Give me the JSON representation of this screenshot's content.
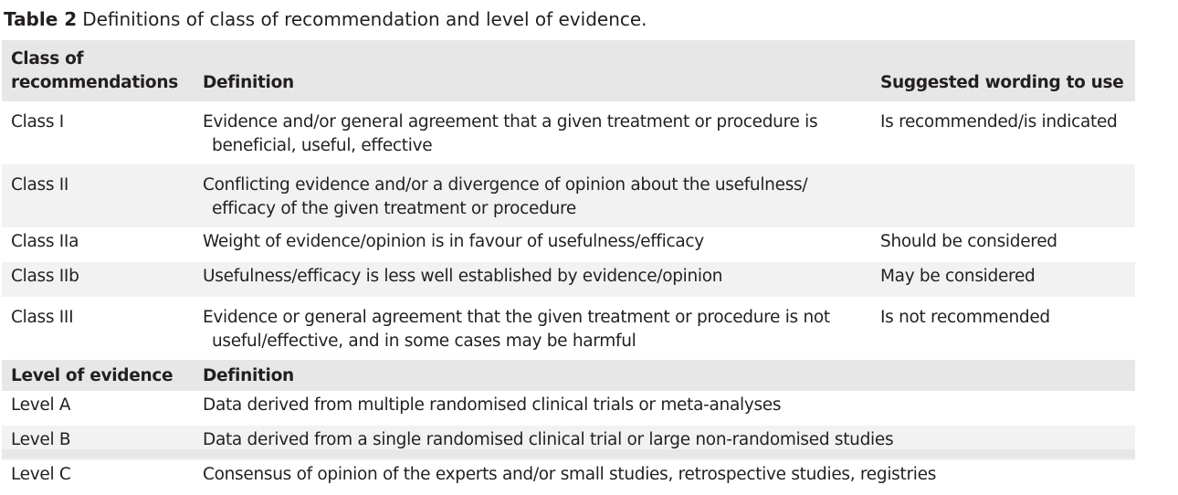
{
  "caption": {
    "label": "Table 2",
    "text": "Definitions of class of recommendation and level of evidence."
  },
  "header": {
    "col1_line1": "Class of",
    "col1_line2": "recommendations",
    "col2": "Definition",
    "col3": "Suggested wording to use"
  },
  "classes": [
    {
      "class": "Class I",
      "def_line1": "Evidence and/or general agreement that a given treatment or procedure is",
      "def_line2": "beneficial, useful, effective",
      "wording": "Is recommended/is indicated"
    },
    {
      "class": "Class II",
      "def_line1": "Conflicting evidence and/or a divergence of opinion about the usefulness/",
      "def_line2": "efficacy of the given treatment or procedure",
      "wording": ""
    },
    {
      "class": "Class IIa",
      "def_line1": "Weight of evidence/opinion is in favour of usefulness/efficacy",
      "wording": "Should be considered"
    },
    {
      "class": "Class IIb",
      "def_line1": "Usefulness/efficacy is less well established by evidence/opinion",
      "wording": "May be considered"
    },
    {
      "class": "Class III",
      "def_line1": "Evidence or general agreement that the given treatment or procedure is not",
      "def_line2": "useful/effective, and in some cases may be harmful",
      "wording": "Is not recommended"
    }
  ],
  "evidence_header": {
    "col1": "Level of evidence",
    "col2": "Definition"
  },
  "levels": [
    {
      "level": "Level A",
      "definition": "Data derived from multiple randomised clinical trials or meta-analyses"
    },
    {
      "level": "Level B",
      "definition": "Data derived from a single randomised clinical trial or large non-randomised studies"
    },
    {
      "level": "Level C",
      "definition": "Consensus of opinion of the experts and/or small studies, retrospective studies, registries"
    }
  ]
}
